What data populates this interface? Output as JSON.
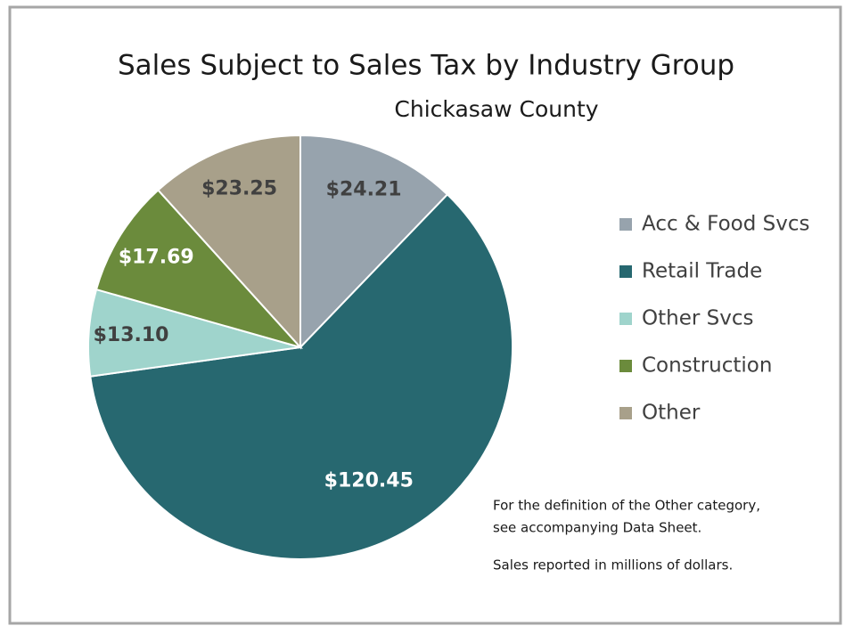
{
  "chart_data": {
    "type": "pie",
    "title": "Sales Subject to Sales Tax by Industry Group",
    "subtitle": "Chickasaw County",
    "categories": [
      "Acc & Food Svcs",
      "Retail Trade",
      "Other Svcs",
      "Construction",
      "Other"
    ],
    "values": [
      24.21,
      120.45,
      13.1,
      17.69,
      23.25
    ],
    "value_labels": [
      "$24.21",
      "$120.45",
      "$13.10",
      "$17.69",
      "$23.25"
    ],
    "colors": [
      "#97a3ad",
      "#276870",
      "#9fd4cc",
      "#6b8b3c",
      "#a8a08a"
    ],
    "legend": "right",
    "notes": [
      "For the definition of the Other category,",
      "see accompanying Data Sheet.",
      "Sales reported in millions of dollars."
    ]
  }
}
